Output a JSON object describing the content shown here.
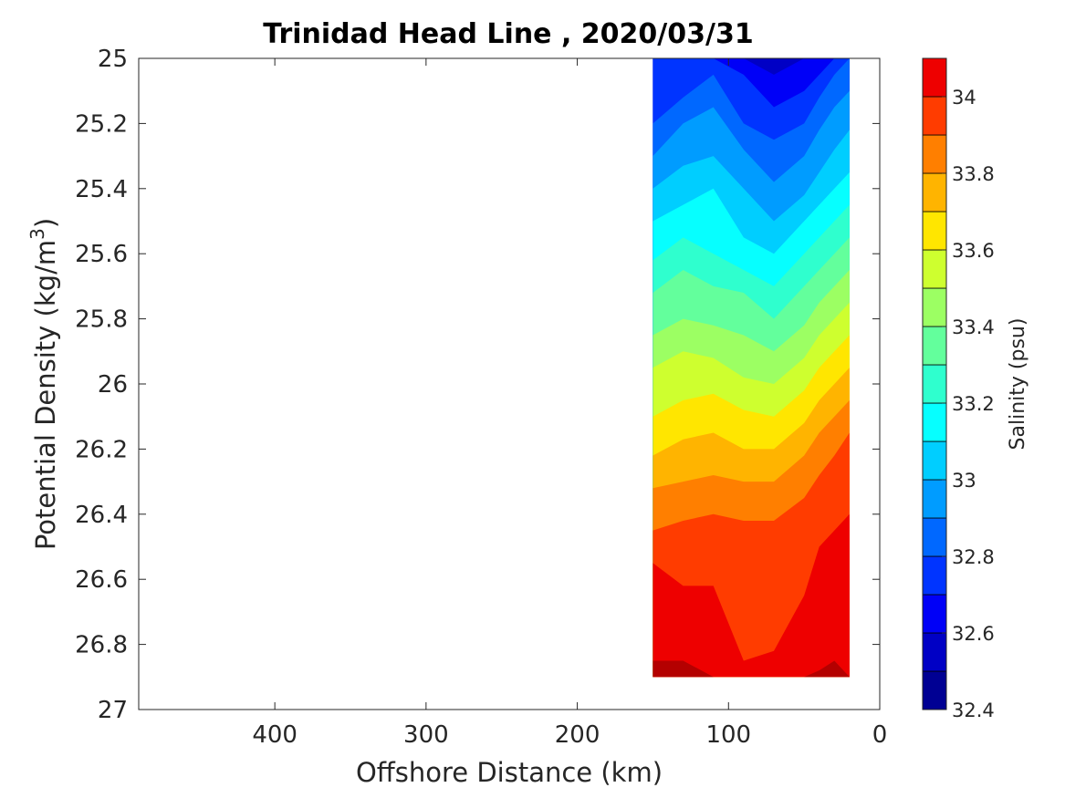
{
  "chart_data": {
    "type": "contour",
    "title": "Trinidad Head Line , 2020/03/31",
    "xlabel": "Offshore Distance (km)",
    "ylabel_main": "Potential Density (kg/m",
    "ylabel_sup": "3",
    "ylabel_close": ")",
    "colorbar_label": "Salinity (psu)",
    "xlim": [
      490,
      0
    ],
    "ylim": [
      25,
      27
    ],
    "x_reversed": true,
    "y_reversed": true,
    "x_ticks": [
      400,
      300,
      200,
      100,
      0
    ],
    "y_ticks": [
      25,
      25.2,
      25.4,
      25.6,
      25.8,
      26,
      26.2,
      26.4,
      26.6,
      26.8,
      27
    ],
    "colorbar_ticks": [
      34,
      33.8,
      33.6,
      33.4,
      33.2,
      33,
      32.8,
      32.6,
      32.4
    ],
    "colorbar_range": [
      32.4,
      34.1
    ],
    "colormap": "jet",
    "levels": [
      32.4,
      32.5,
      32.6,
      32.7,
      32.8,
      32.9,
      33.0,
      33.1,
      33.2,
      33.3,
      33.4,
      33.5,
      33.6,
      33.7,
      33.8,
      33.9,
      34.0,
      34.1
    ],
    "level_colors": [
      "#000093",
      "#0000c5",
      "#0000f7",
      "#0034ff",
      "#0068ff",
      "#009cff",
      "#00ceff",
      "#06ffff",
      "#2fffce",
      "#63ff9c",
      "#9cff63",
      "#ceff2f",
      "#ffe600",
      "#ffb400",
      "#ff7f00",
      "#ff3c00",
      "#ee0000",
      "#b40000"
    ],
    "data_extent": {
      "x_km": [
        150,
        20
      ],
      "density": [
        25,
        26.9
      ]
    },
    "stations_km": [
      150,
      130,
      110,
      90,
      70,
      50,
      40,
      30,
      20
    ],
    "isohaline_depths": {
      "32.5": [
        25.0,
        25.0,
        25.0,
        25.0,
        25.0,
        25.0,
        25.0,
        25.0,
        25.0
      ],
      "32.6": [
        25.0,
        25.0,
        25.0,
        25.0,
        25.05,
        25.0,
        25.0,
        25.0,
        25.0
      ],
      "32.7": [
        25.0,
        25.0,
        25.0,
        25.05,
        25.15,
        25.1,
        25.05,
        25.0,
        25.0
      ],
      "32.8": [
        25.2,
        25.12,
        25.05,
        25.2,
        25.25,
        25.2,
        25.12,
        25.05,
        25.0
      ],
      "32.9": [
        25.3,
        25.2,
        25.15,
        25.28,
        25.38,
        25.3,
        25.22,
        25.15,
        25.1
      ],
      "33.0": [
        25.4,
        25.33,
        25.3,
        25.4,
        25.5,
        25.42,
        25.35,
        25.28,
        25.22
      ],
      "33.1": [
        25.5,
        25.45,
        25.4,
        25.55,
        25.6,
        25.5,
        25.45,
        25.4,
        25.35
      ],
      "33.2": [
        25.62,
        25.55,
        25.6,
        25.65,
        25.7,
        25.6,
        25.55,
        25.5,
        25.45
      ],
      "33.3": [
        25.72,
        25.65,
        25.7,
        25.72,
        25.8,
        25.7,
        25.65,
        25.6,
        25.55
      ],
      "33.4": [
        25.85,
        25.8,
        25.82,
        25.85,
        25.9,
        25.82,
        25.75,
        25.7,
        25.65
      ],
      "33.5": [
        25.95,
        25.9,
        25.92,
        25.98,
        26.0,
        25.92,
        25.85,
        25.8,
        25.75
      ],
      "33.6": [
        26.1,
        26.05,
        26.03,
        26.08,
        26.1,
        26.02,
        25.95,
        25.9,
        25.85
      ],
      "33.7": [
        26.22,
        26.17,
        26.15,
        26.2,
        26.2,
        26.12,
        26.05,
        26.0,
        25.95
      ],
      "33.8": [
        26.32,
        26.3,
        26.28,
        26.3,
        26.3,
        26.22,
        26.15,
        26.1,
        26.05
      ],
      "33.9": [
        26.45,
        26.42,
        26.4,
        26.42,
        26.42,
        26.35,
        26.28,
        26.22,
        26.15
      ],
      "34.0": [
        26.55,
        26.62,
        26.62,
        26.85,
        26.82,
        26.65,
        26.5,
        26.45,
        26.4
      ],
      "34.1": [
        26.85,
        26.85,
        26.9,
        26.9,
        26.9,
        26.9,
        26.88,
        26.85,
        26.9
      ]
    },
    "grid": false,
    "colorbar_position": "right"
  }
}
